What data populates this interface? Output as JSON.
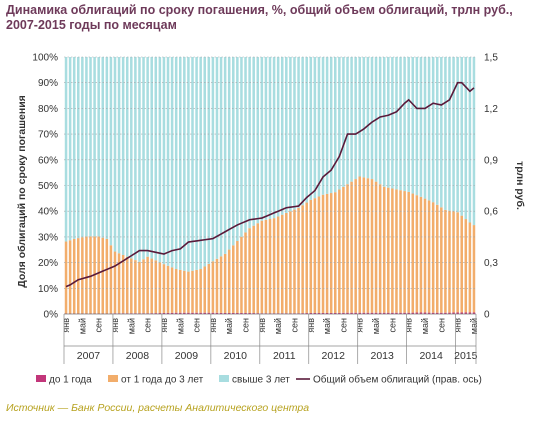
{
  "title": "Динамика облигаций по сроку погашения, %, общий объем облигаций, трлн руб., 2007-2015 годы по месяцам",
  "source": "Источник — Банк России, расчеты Аналитического центра",
  "colors": {
    "short": "#c2367a",
    "mid": "#f2ad6b",
    "long": "#a8dde0",
    "total_line": "#5a1a3a",
    "title": "#6e3a5a",
    "source": "#b7a21f"
  },
  "chart_data": {
    "type": "bar",
    "ylabel": "Доля облигаций по сроку погашения",
    "y2label": "трлн руб.",
    "ylim": [
      0,
      100
    ],
    "y2lim": [
      0,
      1.5
    ],
    "yticks": [
      "0%",
      "10%",
      "20%",
      "30%",
      "40%",
      "50%",
      "60%",
      "70%",
      "80%",
      "90%",
      "100%"
    ],
    "y2ticks": [
      "0",
      "0,3",
      "0,6",
      "0,9",
      "1,2",
      "1,5"
    ],
    "month_labels": [
      "янв",
      "май",
      "сен"
    ],
    "years": [
      "2007",
      "2008",
      "2009",
      "2010",
      "2011",
      "2012",
      "2013",
      "2014",
      "2015"
    ],
    "legend": [
      "до 1 года",
      "от 1 года до 3 лет",
      "свыше 3 лет",
      "Общий объем облигаций (прав. ось)"
    ],
    "stacked_percent_anchors": {
      "months": [
        0,
        2,
        5,
        8,
        10,
        12,
        15,
        18,
        20,
        24,
        27,
        30,
        33,
        36,
        39,
        42,
        45,
        48,
        51,
        54,
        57,
        60,
        63,
        66,
        69,
        72,
        75,
        78,
        81,
        84,
        87,
        90,
        93,
        96,
        99,
        100
      ],
      "short": [
        0.2,
        0.2,
        0.2,
        0.2,
        0.2,
        0.3,
        0.3,
        0.3,
        0.3,
        0.4,
        0.5,
        0.5,
        0.5,
        0.5,
        0.4,
        0.4,
        0.4,
        0.3,
        0.3,
        0.3,
        0.3,
        0.4,
        0.4,
        0.4,
        0.5,
        0.5,
        0.5,
        0.5,
        0.5,
        0.5,
        0.6,
        0.5,
        0.5,
        0.6,
        0.6,
        0.6
      ],
      "mid": [
        28,
        29,
        30,
        30,
        29,
        24,
        22,
        20,
        22,
        19,
        17,
        16,
        17,
        20,
        23,
        28,
        33,
        36,
        37,
        39,
        41,
        44,
        46,
        47,
        50,
        53,
        52,
        49,
        48,
        47,
        45,
        43,
        40,
        39,
        35,
        34
      ]
    },
    "total_volume_anchors": {
      "months": [
        0,
        1,
        3,
        6,
        9,
        12,
        14,
        16,
        18,
        20,
        22,
        24,
        26,
        28,
        30,
        33,
        36,
        39,
        42,
        45,
        48,
        51,
        54,
        57,
        59,
        61,
        63,
        65,
        67,
        69,
        71,
        73,
        75,
        77,
        79,
        81,
        83,
        84,
        86,
        88,
        90,
        92,
        94,
        96,
        97,
        99,
        101
      ],
      "values": [
        0.16,
        0.17,
        0.2,
        0.22,
        0.25,
        0.28,
        0.31,
        0.34,
        0.37,
        0.37,
        0.36,
        0.35,
        0.37,
        0.38,
        0.42,
        0.43,
        0.44,
        0.48,
        0.52,
        0.55,
        0.56,
        0.59,
        0.62,
        0.63,
        0.68,
        0.72,
        0.8,
        0.84,
        0.92,
        1.05,
        1.05,
        1.08,
        1.12,
        1.15,
        1.16,
        1.18,
        1.23,
        1.25,
        1.2,
        1.2,
        1.23,
        1.22,
        1.25,
        1.35,
        1.35,
        1.3,
        1.34
      ]
    }
  }
}
